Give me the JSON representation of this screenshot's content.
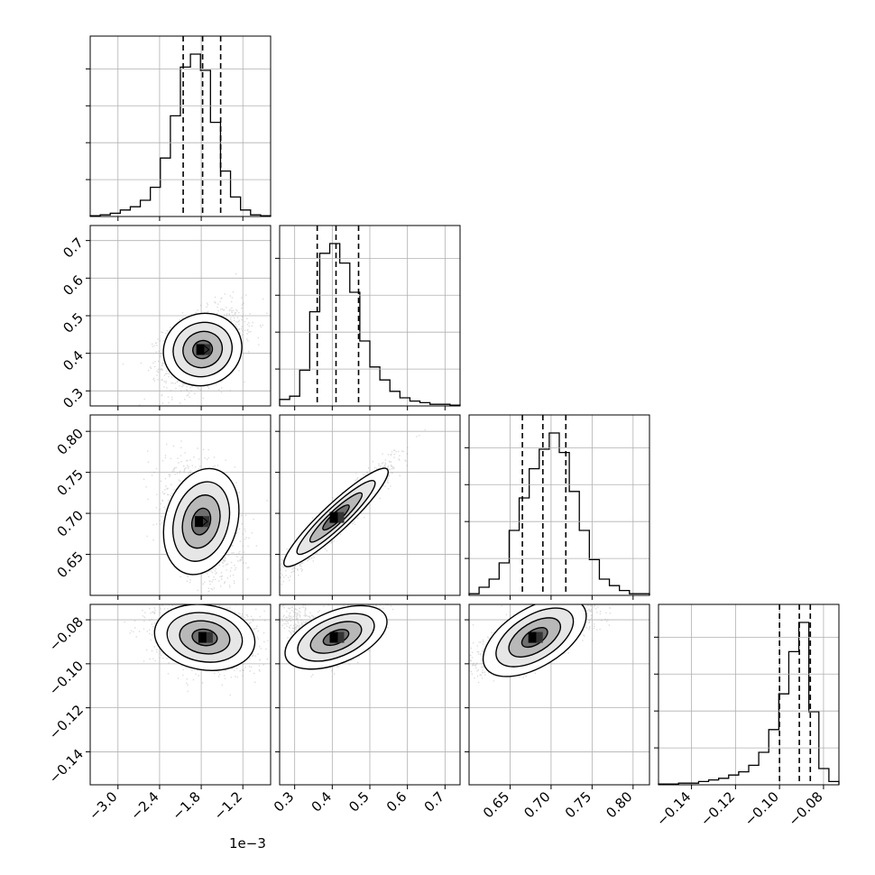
{
  "chart_data": {
    "type": "corner",
    "grid": true,
    "contour_levels": [
      "0.5 sigma",
      "1 sigma",
      "1.5 sigma",
      "2 sigma"
    ],
    "quantiles": [
      0.16,
      0.5,
      0.84
    ],
    "parameters": [
      {
        "range": [
          -0.0034,
          -0.0008
        ],
        "ticks": [
          -3.0,
          -2.4,
          -1.8,
          -1.2
        ],
        "tick_labels": [
          "−3.0",
          "−2.4",
          "−1.8",
          "−1.2"
        ],
        "scale_label": "1e−3",
        "quantile_values": [
          -0.00206,
          -0.00178,
          -0.00152
        ],
        "hist": [
          0.5,
          1,
          2,
          4,
          6,
          10,
          18,
          36,
          62,
          92,
          100,
          90,
          58,
          28,
          12,
          4,
          1,
          0.5
        ]
      },
      {
        "range": [
          0.26,
          0.74
        ],
        "ticks": [
          0.3,
          0.4,
          0.5,
          0.6,
          0.7
        ],
        "tick_labels": [
          "0.3",
          "0.4",
          "0.5",
          "0.6",
          "0.7"
        ],
        "quantile_values": [
          0.36,
          0.41,
          0.47
        ],
        "hist": [
          4,
          6,
          22,
          58,
          94,
          100,
          88,
          70,
          40,
          24,
          16,
          9,
          5,
          3,
          2,
          1,
          1,
          0.5
        ]
      },
      {
        "range": [
          0.6,
          0.82
        ],
        "ticks": [
          0.65,
          0.7,
          0.75,
          0.8
        ],
        "tick_labels": [
          "0.65",
          "0.70",
          "0.75",
          "0.80"
        ],
        "quantile_values": [
          0.665,
          0.69,
          0.718
        ],
        "hist": [
          1,
          5,
          10,
          20,
          40,
          60,
          78,
          90,
          100,
          88,
          64,
          40,
          22,
          10,
          6,
          3,
          1,
          1
        ]
      },
      {
        "range": [
          -0.155,
          -0.073
        ],
        "ticks": [
          -0.14,
          -0.12,
          -0.1,
          -0.08
        ],
        "tick_labels": [
          "−0.14",
          "−0.12",
          "−0.10",
          "−0.08"
        ],
        "quantile_values": [
          -0.1,
          -0.091,
          -0.086
        ],
        "hist": [
          0.5,
          0.5,
          1,
          1,
          2,
          3,
          4,
          6,
          8,
          12,
          20,
          34,
          56,
          82,
          100,
          45,
          10,
          2
        ]
      }
    ],
    "pairs": [
      {
        "row": 1,
        "col": 0,
        "center": [
          -0.00178,
          0.41
        ],
        "peak_marker": true
      },
      {
        "row": 2,
        "col": 0,
        "center": [
          -0.0018,
          0.69
        ],
        "peak_marker": true
      },
      {
        "row": 2,
        "col": 1,
        "center": [
          0.41,
          0.695
        ],
        "peak_marker": false
      },
      {
        "row": 3,
        "col": 0,
        "center": [
          -0.00175,
          -0.088
        ],
        "peak_marker": false
      },
      {
        "row": 3,
        "col": 1,
        "center": [
          0.41,
          -0.088
        ],
        "peak_marker": false
      },
      {
        "row": 3,
        "col": 2,
        "center": [
          0.68,
          -0.088
        ],
        "peak_marker": false
      }
    ]
  }
}
